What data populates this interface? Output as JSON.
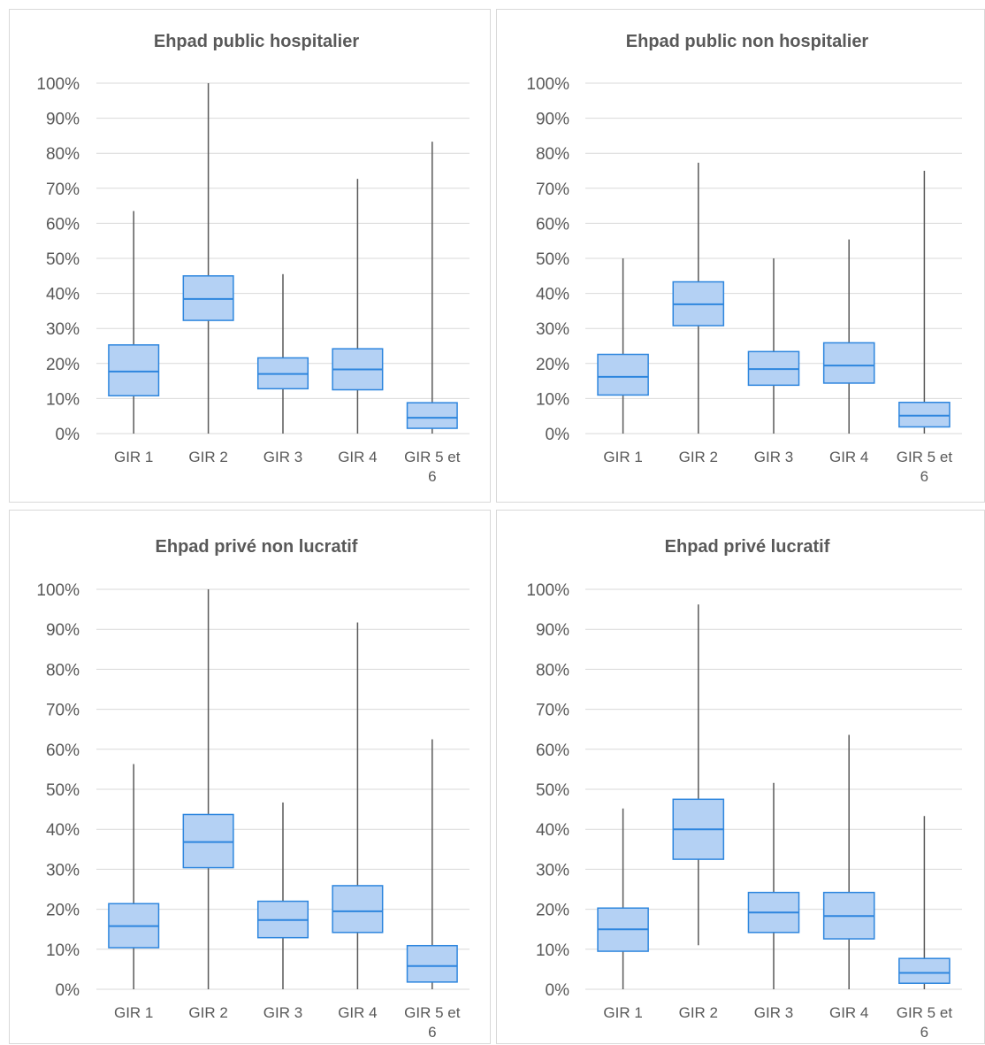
{
  "chart_data": [
    {
      "type": "box",
      "title": "Ehpad public hospitalier",
      "categories": [
        "GIR 1",
        "GIR 2",
        "GIR 3",
        "GIR 4",
        "GIR 5 et 6"
      ],
      "y_ticks": [
        "0%",
        "10%",
        "20%",
        "30%",
        "40%",
        "50%",
        "60%",
        "70%",
        "80%",
        "90%",
        "100%"
      ],
      "ylim": [
        0,
        100
      ],
      "grid": true,
      "boxes": [
        {
          "min": 0,
          "q1": 10.8,
          "median": 17.7,
          "q3": 25.3,
          "max": 63.5
        },
        {
          "min": 0,
          "q1": 32.3,
          "median": 38.4,
          "q3": 45.0,
          "max": 100
        },
        {
          "min": 0,
          "q1": 12.8,
          "median": 17.0,
          "q3": 21.6,
          "max": 45.5
        },
        {
          "min": 0,
          "q1": 12.5,
          "median": 18.3,
          "q3": 24.2,
          "max": 72.7
        },
        {
          "min": 0,
          "q1": 1.5,
          "median": 4.5,
          "q3": 8.8,
          "max": 83.3
        }
      ]
    },
    {
      "type": "box",
      "title": "Ehpad public non hospitalier",
      "categories": [
        "GIR 1",
        "GIR 2",
        "GIR 3",
        "GIR 4",
        "GIR 5 et 6"
      ],
      "y_ticks": [
        "0%",
        "10%",
        "20%",
        "30%",
        "40%",
        "50%",
        "60%",
        "70%",
        "80%",
        "90%",
        "100%"
      ],
      "ylim": [
        0,
        100
      ],
      "grid": true,
      "boxes": [
        {
          "min": 0,
          "q1": 11.0,
          "median": 16.2,
          "q3": 22.6,
          "max": 50.0
        },
        {
          "min": 0,
          "q1": 30.8,
          "median": 36.9,
          "q3": 43.3,
          "max": 77.3
        },
        {
          "min": 0,
          "q1": 13.8,
          "median": 18.4,
          "q3": 23.4,
          "max": 50.0
        },
        {
          "min": 0,
          "q1": 14.4,
          "median": 19.4,
          "q3": 25.9,
          "max": 55.4
        },
        {
          "min": 0,
          "q1": 1.9,
          "median": 5.1,
          "q3": 8.9,
          "max": 75.0
        }
      ]
    },
    {
      "type": "box",
      "title": "Ehpad privé non lucratif",
      "categories": [
        "GIR 1",
        "GIR 2",
        "GIR 3",
        "GIR 4",
        "GIR 5 et 6"
      ],
      "y_ticks": [
        "0%",
        "10%",
        "20%",
        "30%",
        "40%",
        "50%",
        "60%",
        "70%",
        "80%",
        "90%",
        "100%"
      ],
      "ylim": [
        0,
        100
      ],
      "grid": true,
      "boxes": [
        {
          "min": 0,
          "q1": 10.4,
          "median": 15.8,
          "q3": 21.4,
          "max": 56.3
        },
        {
          "min": 0,
          "q1": 30.4,
          "median": 36.8,
          "q3": 43.7,
          "max": 100
        },
        {
          "min": 0,
          "q1": 12.9,
          "median": 17.3,
          "q3": 22.0,
          "max": 46.7
        },
        {
          "min": 0,
          "q1": 14.2,
          "median": 19.5,
          "q3": 25.9,
          "max": 91.7
        },
        {
          "min": 0,
          "q1": 1.8,
          "median": 5.8,
          "q3": 10.9,
          "max": 62.5
        }
      ]
    },
    {
      "type": "box",
      "title": "Ehpad privé lucratif",
      "categories": [
        "GIR 1",
        "GIR 2",
        "GIR 3",
        "GIR 4",
        "GIR 5 et 6"
      ],
      "y_ticks": [
        "0%",
        "10%",
        "20%",
        "30%",
        "40%",
        "50%",
        "60%",
        "70%",
        "80%",
        "90%",
        "100%"
      ],
      "ylim": [
        0,
        100
      ],
      "grid": true,
      "boxes": [
        {
          "min": 0,
          "q1": 9.5,
          "median": 15.0,
          "q3": 20.3,
          "max": 45.2
        },
        {
          "min": 11.0,
          "q1": 32.5,
          "median": 40.0,
          "q3": 47.5,
          "max": 96.2
        },
        {
          "min": 0,
          "q1": 14.2,
          "median": 19.2,
          "q3": 24.2,
          "max": 51.6
        },
        {
          "min": 0,
          "q1": 12.6,
          "median": 18.3,
          "q3": 24.2,
          "max": 63.6
        },
        {
          "min": 0,
          "q1": 1.5,
          "median": 4.1,
          "q3": 7.7,
          "max": 43.3
        }
      ]
    }
  ],
  "colors": {
    "box_fill": "#b4d1f4",
    "box_stroke": "#2e86de",
    "whisker": "#595959",
    "grid": "#d9d9d9",
    "text": "#595959"
  }
}
